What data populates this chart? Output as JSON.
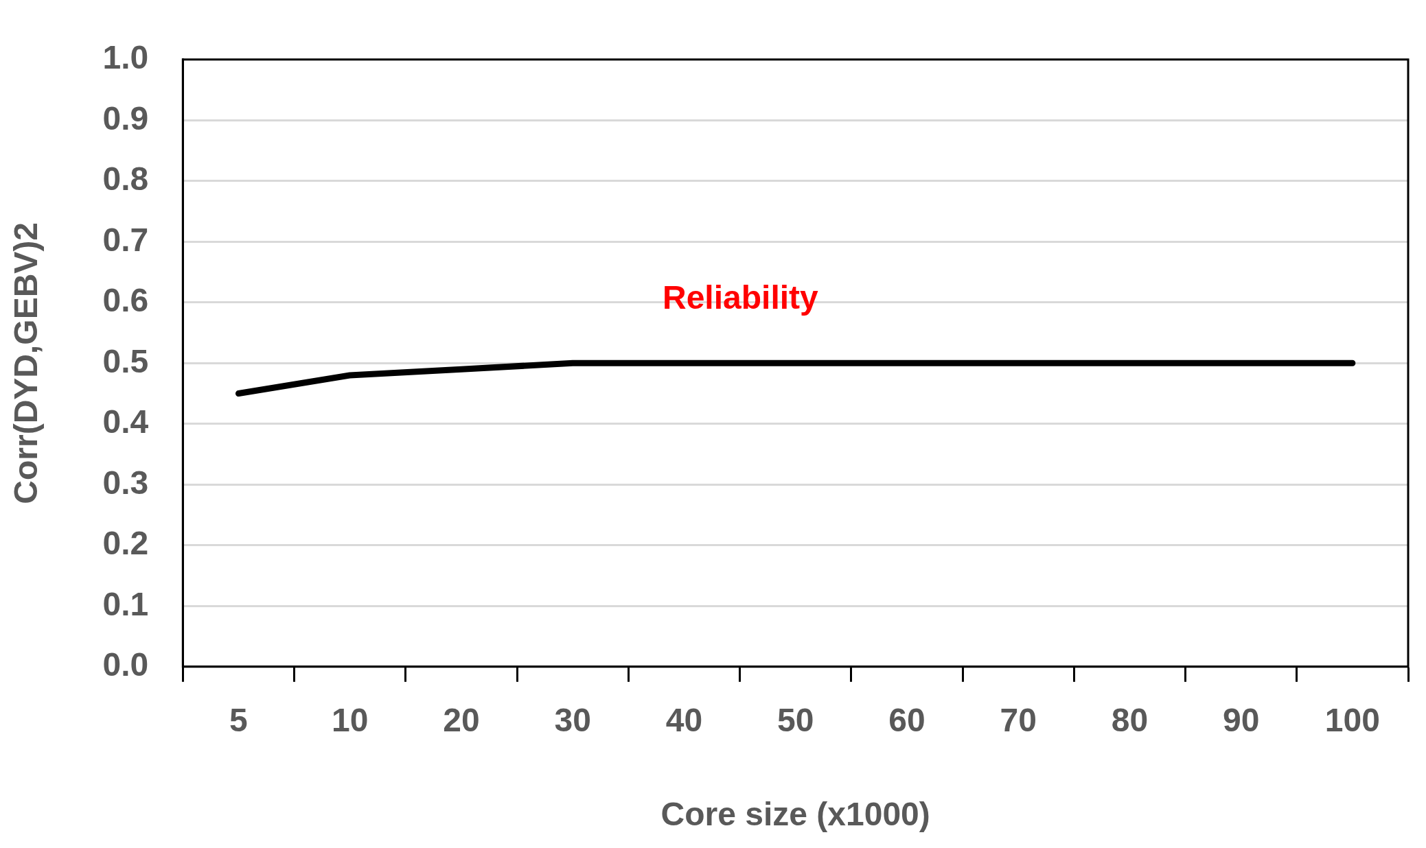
{
  "chart_data": {
    "type": "line",
    "xlabel": "Core size (x1000)",
    "ylabel": "Corr(DYD,GEBV)2",
    "categories": [
      "5",
      "10",
      "20",
      "30",
      "40",
      "50",
      "60",
      "70",
      "80",
      "90",
      "100"
    ],
    "series": [
      {
        "color": "#000000",
        "values": [
          0.45,
          0.48,
          0.49,
          0.5,
          0.5,
          0.5,
          0.5,
          0.5,
          0.5,
          0.5,
          0.5
        ]
      }
    ],
    "ylim": [
      0,
      1
    ],
    "yticks": [
      {
        "value": 0,
        "label": "0.0"
      },
      {
        "value": 0.1,
        "label": "0.1"
      },
      {
        "value": 0.2,
        "label": "0.2"
      },
      {
        "value": 0.3,
        "label": "0.3"
      },
      {
        "value": 0.4,
        "label": "0.4"
      },
      {
        "value": 0.5,
        "label": "0.5"
      },
      {
        "value": 0.6,
        "label": "0.6"
      },
      {
        "value": 0.7,
        "label": "0.7"
      },
      {
        "value": 0.8,
        "label": "0.8"
      },
      {
        "value": 0.9,
        "label": "0.9"
      },
      {
        "value": 1,
        "label": "1.0"
      }
    ],
    "grid": "y",
    "legend": false,
    "marker": "none",
    "line_style": "solid",
    "annotations": [
      "Reliability"
    ]
  }
}
